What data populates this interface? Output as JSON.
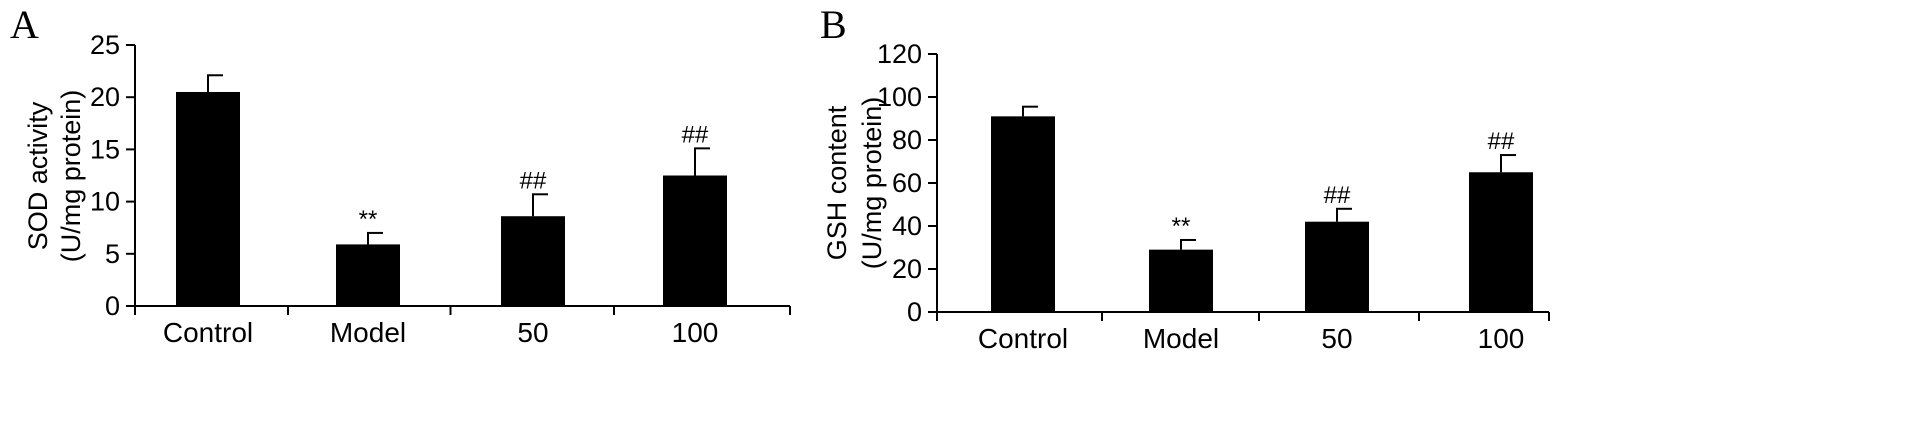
{
  "chart_data": [
    {
      "type": "bar",
      "panel_label": "A",
      "ylabel": [
        "SOD activity",
        "(U/mg protein)"
      ],
      "ylim": [
        0,
        25
      ],
      "yticks": [
        0,
        5,
        10,
        15,
        20,
        25
      ],
      "categories": [
        "Control",
        "Model",
        "50",
        "100"
      ],
      "values": [
        20.5,
        5.9,
        8.6,
        12.5
      ],
      "errors": [
        1.6,
        1.1,
        2.1,
        2.6
      ],
      "annotations": [
        "",
        "**",
        "##",
        "##"
      ],
      "bar_color": "#000000",
      "grid": false
    },
    {
      "type": "bar",
      "panel_label": "B",
      "ylabel": [
        "GSH content",
        "(U/mg protein)"
      ],
      "ylim": [
        0,
        120
      ],
      "yticks": [
        0,
        20,
        40,
        60,
        80,
        100,
        120
      ],
      "categories": [
        "Control",
        "Model",
        "50",
        "100"
      ],
      "values": [
        91,
        29,
        42,
        65
      ],
      "errors": [
        4.5,
        4.5,
        6,
        8
      ],
      "annotations": [
        "",
        "**",
        "##",
        "##"
      ],
      "bar_color": "#000000",
      "grid": false
    }
  ]
}
